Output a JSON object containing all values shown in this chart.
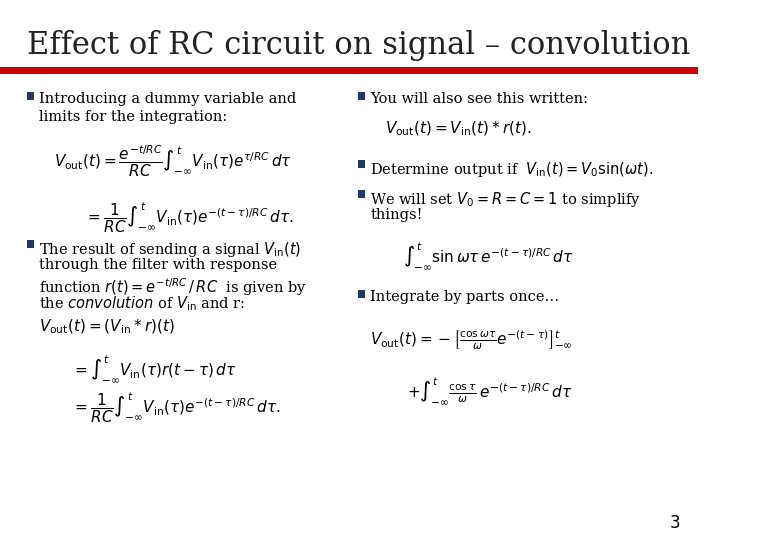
{
  "title": "Effect of RC circuit on signal – convolution",
  "title_fontsize": 22,
  "title_color": "#222222",
  "bg_color": "#ffffff",
  "bar_color": "#cc0000",
  "bullet_color": "#1f3864",
  "text_color": "#000000",
  "page_number": "3",
  "left_bullets": [
    "Introducing a dummy variable and\nlimits for the integration:"
  ],
  "left_eq1a": "$V_{\\mathrm{out}}(t) = \\dfrac{e^{-t/RC}}{RC}\\int_{-\\infty}^{t} V_{\\mathrm{in}}(\\tau)e^{\\tau/RC}\\, d\\tau$",
  "left_eq1b": "$= \\dfrac{1}{RC}\\int_{-\\infty}^{t} V_{\\mathrm{in}}(\\tau)e^{-(t-\\tau)/RC}\\, d\\tau.$",
  "left_bullet2_line1": "The result of sending a signal $V_{\\mathrm{in}}(t)$",
  "left_bullet2_line2": "through the filter with response",
  "left_bullet2_line3": "function $r(t) = e^{-t/RC}\\,/\\,RC$  is given by",
  "left_bullet2_line4": "the \\textit{convolution} of $V_{\\mathrm{in}}$ and r:",
  "left_eq2a": "$V_{\\mathrm{out}}(t) = (V_{\\mathrm{in}} * r)(t)$",
  "left_eq2b": "$= \\int_{-\\infty}^{t} V_{\\mathrm{in}}(\\tau)r(t-\\tau)\\,d\\tau$",
  "left_eq2c": "$= \\dfrac{1}{RC}\\int_{-\\infty}^{t} V_{\\mathrm{in}}(\\tau)e^{-(t-\\tau)/RC}\\, d\\tau.$",
  "right_bullet1_line1": "You will also see this written:",
  "right_eq1a": "$V_{\\mathrm{out}}(t) = V_{\\mathrm{in}}(t)*r(t).$",
  "right_bullet2": "Determine output if  $V_{\\mathrm{in}}(t) = V_0 \\sin(\\omega t).$",
  "right_bullet3_line1": "We will set $V_0 = R = C = 1$ to simplify",
  "right_bullet3_line2": "things!",
  "right_eq2": "$\\int_{-\\infty}^{t} \\sin\\omega\\tau\\, e^{-(t-\\tau)/RC}\\, d\\tau$",
  "right_bullet4": "Integrate by parts once…",
  "right_eq3a": "$V_{\\mathrm{out}}(t) = -\\left[e^{-(t-\\tau)}\\dfrac{\\cos\\omega\\tau}{\\omega}\\right]_{-\\infty}^{t}$",
  "right_eq3b": "$+ \\int_{-\\infty}^{t} \\dfrac{\\cos\\tau}{\\omega}\\, e^{-(t-\\tau)/RC}\\, d\\tau$"
}
